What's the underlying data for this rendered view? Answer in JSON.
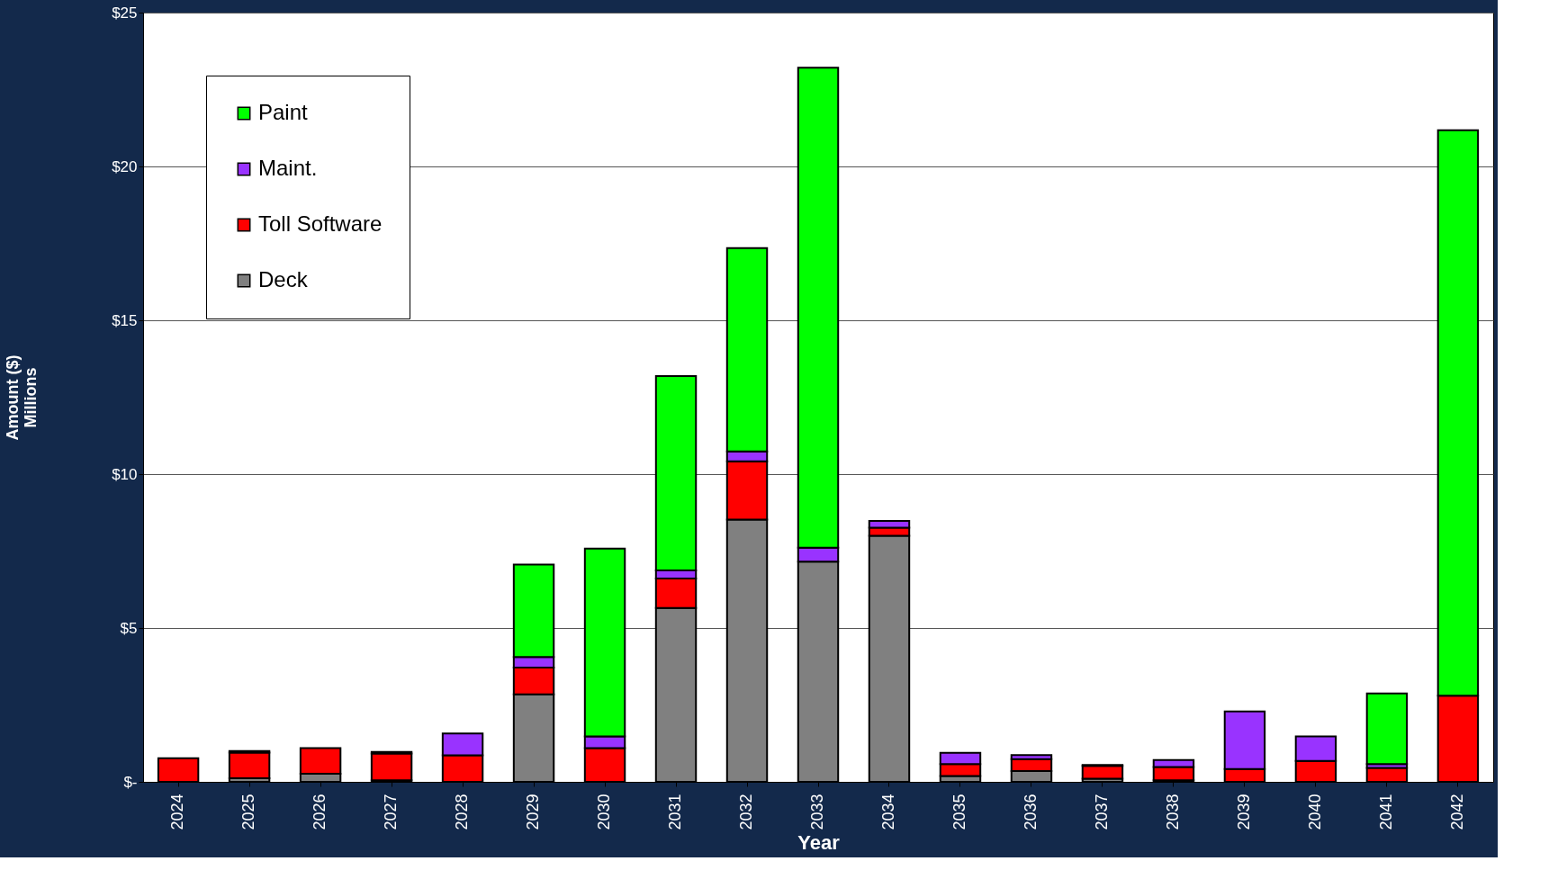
{
  "chart_data": {
    "type": "bar",
    "stacked": true,
    "xlabel": "Year",
    "ylabel": "Amount ($)\nMillions",
    "categories": [
      "2024",
      "2025",
      "2026",
      "2027",
      "2028",
      "2029",
      "2030",
      "2031",
      "2032",
      "2033",
      "2034",
      "2035",
      "2036",
      "2037",
      "2038",
      "2039",
      "2040",
      "2041",
      "2042"
    ],
    "series": [
      {
        "name": "Deck",
        "color": "#808080",
        "values": [
          null,
          0.12,
          0.26,
          0.05,
          null,
          2.84,
          null,
          5.65,
          8.52,
          7.16,
          8.0,
          0.19,
          0.35,
          0.1,
          0.05,
          null,
          null,
          null,
          null
        ]
      },
      {
        "name": "Toll Software",
        "color": "#ff0000",
        "values": [
          0.77,
          0.83,
          0.84,
          0.87,
          0.86,
          0.87,
          1.1,
          0.96,
          1.9,
          null,
          0.26,
          0.39,
          0.39,
          0.42,
          0.43,
          0.42,
          0.68,
          0.45,
          2.8
        ]
      },
      {
        "name": "Maint.",
        "color": "#9933ff",
        "values": [
          null,
          0.05,
          null,
          0.05,
          0.71,
          0.35,
          0.38,
          0.26,
          0.32,
          0.45,
          0.22,
          0.36,
          0.13,
          0.03,
          0.23,
          1.87,
          0.8,
          0.13,
          null
        ]
      },
      {
        "name": "Paint",
        "color": "#00ff00",
        "values": [
          null,
          null,
          null,
          null,
          null,
          3.0,
          6.1,
          6.32,
          6.61,
          15.6,
          null,
          null,
          null,
          null,
          null,
          null,
          null,
          2.29,
          18.38
        ]
      }
    ],
    "ylim": [
      0,
      25
    ],
    "yticks": [
      {
        "value": 0,
        "label": "$-"
      },
      {
        "value": 5,
        "label": "$5"
      },
      {
        "value": 10,
        "label": "$10"
      },
      {
        "value": 15,
        "label": "$15"
      },
      {
        "value": 20,
        "label": "$20"
      },
      {
        "value": 25,
        "label": "$25"
      }
    ],
    "grid": "y",
    "legend": "top left"
  }
}
